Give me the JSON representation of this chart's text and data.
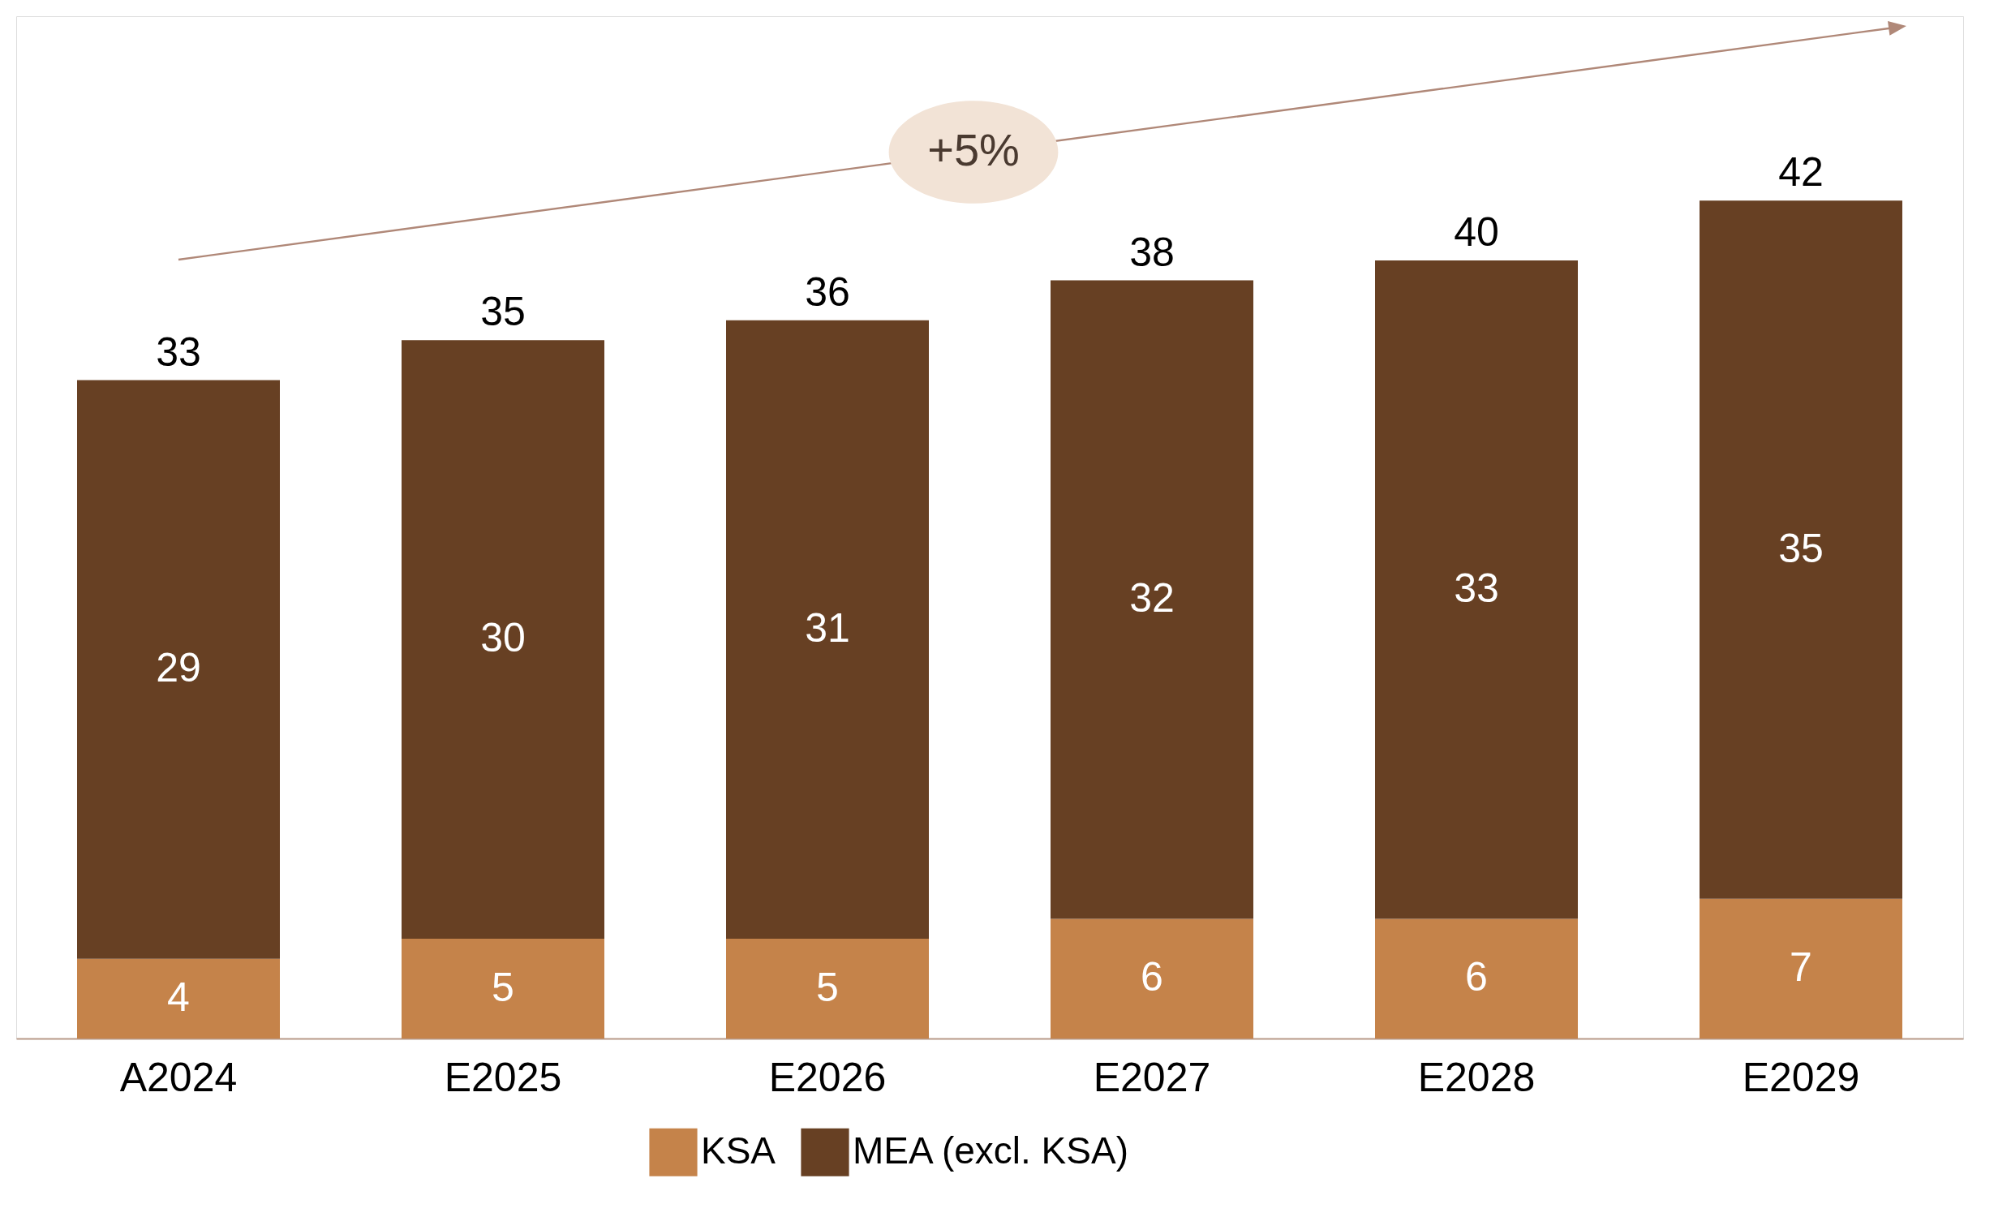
{
  "chart_data": {
    "type": "bar",
    "stacked": true,
    "categories": [
      "A2024",
      "E2025",
      "E2026",
      "E2027",
      "E2028",
      "E2029"
    ],
    "series": [
      {
        "name": "KSA",
        "color": "#c5834a",
        "values": [
          4,
          5,
          5,
          6,
          6,
          7
        ]
      },
      {
        "name": "MEA (excl. KSA)",
        "color": "#674023",
        "values": [
          29,
          30,
          31,
          32,
          33,
          35
        ]
      }
    ],
    "totals": [
      "33",
      "35",
      "36",
      "38",
      "40",
      "42"
    ],
    "data_labels": true,
    "legend": "bottom",
    "grid": false,
    "annotations": [
      "+5%"
    ]
  }
}
